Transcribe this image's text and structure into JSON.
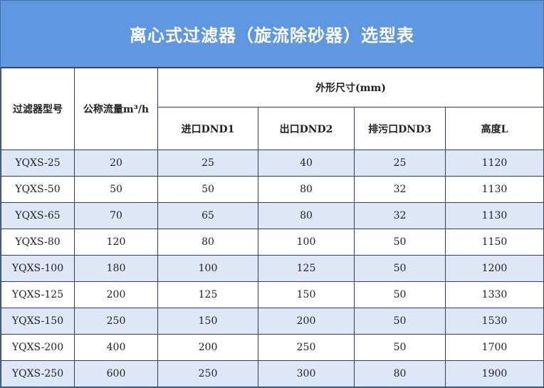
{
  "header": {
    "title": "离心式过滤器（旋流除砂器）选型表"
  },
  "table": {
    "header": {
      "model": "过滤器型号",
      "flow": "公称流量m³/h",
      "dimensions": "外形尺寸(mm)",
      "subcolumns": [
        "进口DND1",
        "出口DND2",
        "排污口DND3",
        "高度L"
      ]
    },
    "rows": [
      [
        "YQXS-25",
        20,
        25,
        40,
        25,
        1120
      ],
      [
        "YQXS-50",
        50,
        50,
        80,
        32,
        1130
      ],
      [
        "YQXS-65",
        70,
        65,
        80,
        32,
        1130
      ],
      [
        "YQXS-80",
        120,
        80,
        100,
        50,
        1150
      ],
      [
        "YQXS-100",
        180,
        100,
        125,
        50,
        1200
      ],
      [
        "YQXS-125",
        200,
        125,
        150,
        50,
        1330
      ],
      [
        "YQXS-150",
        250,
        150,
        200,
        50,
        1530
      ],
      [
        "YQXS-200",
        400,
        200,
        250,
        50,
        1700
      ],
      [
        "YQXS-250",
        600,
        250,
        300,
        80,
        1900
      ]
    ]
  }
}
